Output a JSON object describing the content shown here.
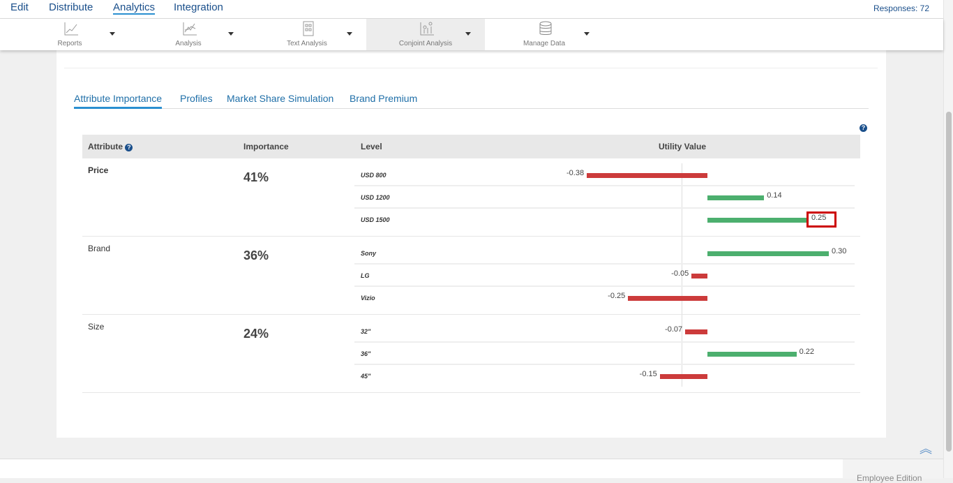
{
  "topnav": {
    "items": [
      {
        "label": "Edit"
      },
      {
        "label": "Distribute"
      },
      {
        "label": "Analytics",
        "active": true
      },
      {
        "label": "Integration"
      }
    ],
    "responses": "Responses: 72"
  },
  "toolbar": {
    "items": [
      {
        "label": "Reports",
        "icon": "line-chart-icon"
      },
      {
        "label": "Analysis",
        "icon": "multi-line-chart-icon"
      },
      {
        "label": "Text Analysis",
        "icon": "document-grid-icon"
      },
      {
        "label": "Conjoint Analysis",
        "icon": "scatter-chart-icon",
        "active": true
      },
      {
        "label": "Manage Data",
        "icon": "database-icon"
      }
    ]
  },
  "tabs": [
    {
      "label": "Attribute Importance",
      "active": true
    },
    {
      "label": "Profiles"
    },
    {
      "label": "Market Share Simulation"
    },
    {
      "label": "Brand Premium"
    }
  ],
  "table": {
    "headers": {
      "attribute": "Attribute",
      "importance": "Importance",
      "level": "Level",
      "utility": "Utility Value"
    },
    "help_glyph": "?",
    "colors": {
      "positive": "#4caf6e",
      "negative": "#cc3b3b",
      "highlight": "#cc0000"
    },
    "sections": [
      {
        "attribute": "Price",
        "bold": true,
        "importance": "41%",
        "levels": [
          {
            "name": "USD 800",
            "value": -0.38,
            "label": "-0.38"
          },
          {
            "name": "USD 1200",
            "value": 0.14,
            "label": "0.14"
          },
          {
            "name": "USD 1500",
            "value": 0.25,
            "label": "0.25",
            "highlighted": true
          }
        ]
      },
      {
        "attribute": "Brand",
        "importance": "36%",
        "levels": [
          {
            "name": "Sony",
            "value": 0.3,
            "label": "0.30"
          },
          {
            "name": "LG",
            "value": -0.05,
            "label": "-0.05"
          },
          {
            "name": "Vizio",
            "value": -0.25,
            "label": "-0.25"
          }
        ]
      },
      {
        "attribute": "Size",
        "importance": "24%",
        "levels": [
          {
            "name": "32\"",
            "value": -0.07,
            "label": "-0.07"
          },
          {
            "name": "36\"",
            "value": 0.22,
            "label": "0.22"
          },
          {
            "name": "45\"",
            "value": -0.15,
            "label": "-0.15"
          }
        ]
      }
    ]
  },
  "footer": {
    "edition": "Employee Edition"
  }
}
